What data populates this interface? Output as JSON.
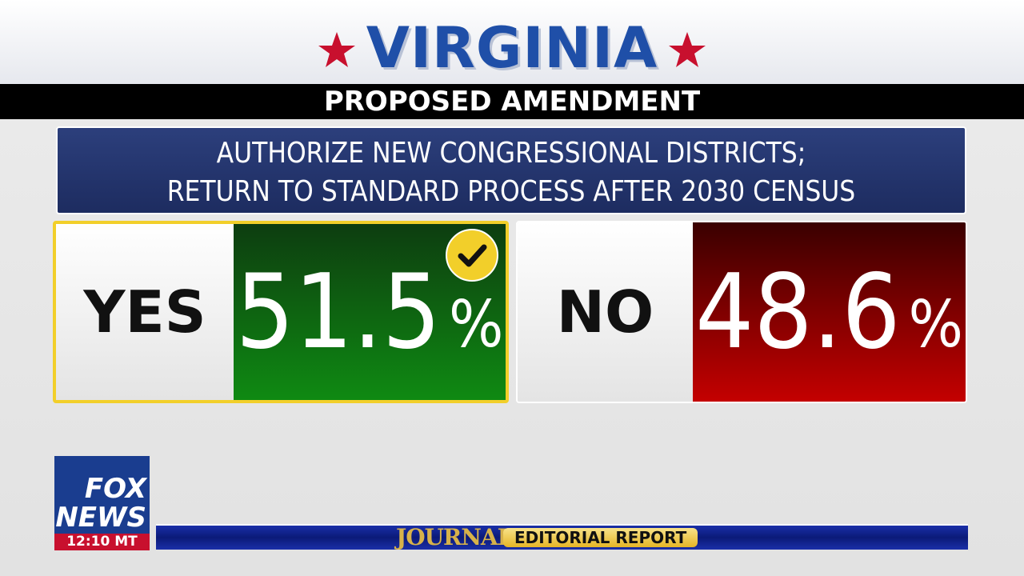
{
  "header": {
    "state": "VIRGINIA",
    "subtitle": "PROPOSED AMENDMENT"
  },
  "question": {
    "lines": [
      "AUTHORIZE NEW CONGRESSIONAL DISTRICTS;",
      "RETURN TO STANDARD PROCESS AFTER 2030 CENSUS"
    ]
  },
  "options": [
    {
      "label": "YES",
      "percent": "51.5",
      "unit": "%"
    },
    {
      "label": "NO",
      "percent": "48.6",
      "unit": "%"
    }
  ],
  "logo": {
    "top": "FOX",
    "bottom": "NEWS",
    "time": "12:10 MT"
  },
  "ticker": {
    "brand": "JOURNAL",
    "show": "EDITORIAL REPORT"
  }
}
